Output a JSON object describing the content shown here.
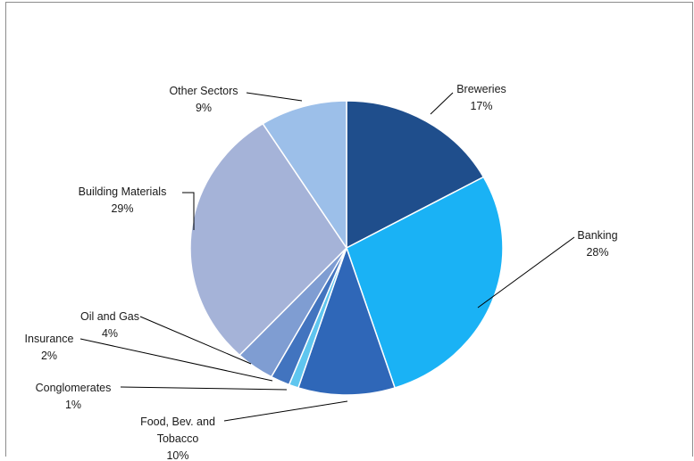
{
  "chart_data": {
    "type": "pie",
    "title": "",
    "start_angle_deg": 0,
    "direction": "clockwise",
    "slices": [
      {
        "name": "Breweries",
        "value": 17,
        "label": "17%",
        "color": "#1f4e8c"
      },
      {
        "name": "Banking",
        "value": 28,
        "label": "28%",
        "color": "#1ab2f5"
      },
      {
        "name": "Food, Bev. and Tobacco",
        "value": 10,
        "label": "10%",
        "color": "#2f67b8"
      },
      {
        "name": "Conglomerates",
        "value": 1,
        "label": "1%",
        "color": "#5fc6ef"
      },
      {
        "name": "Insurance",
        "value": 2,
        "label": "2%",
        "color": "#4274bf"
      },
      {
        "name": "Oil and Gas",
        "value": 4,
        "label": "4%",
        "color": "#7f9dd2"
      },
      {
        "name": "Building Materials",
        "value": 29,
        "label": "29%",
        "color": "#a5b3d8"
      },
      {
        "name": "Other Sectors",
        "value": 9,
        "label": "9%",
        "color": "#9cbfe9"
      }
    ]
  }
}
